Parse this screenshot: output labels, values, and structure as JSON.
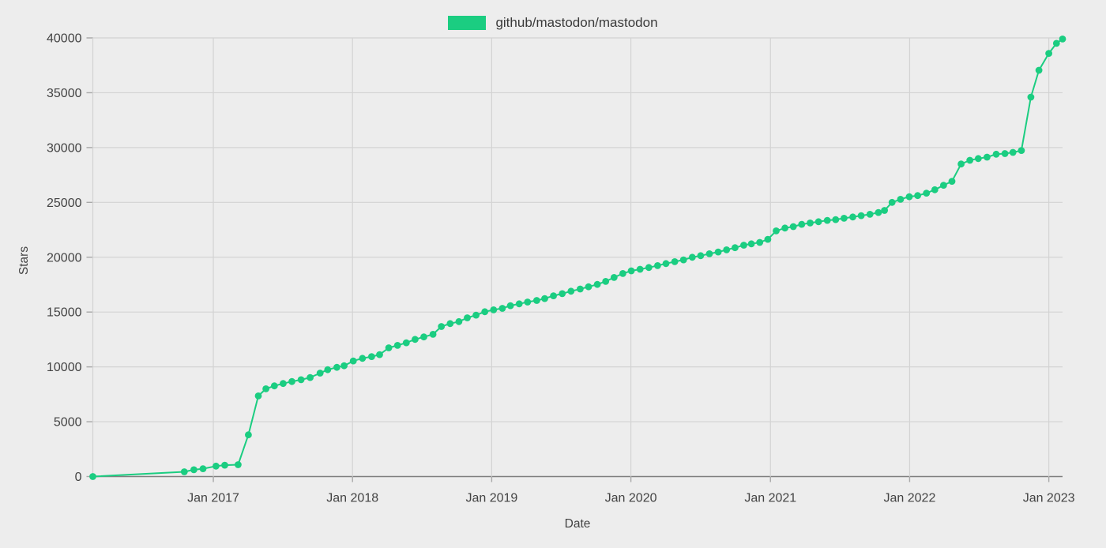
{
  "legend": {
    "label": "github/mastodon/mastodon",
    "swatch_color": "#1BCD81"
  },
  "colors": {
    "background": "#EDEDED",
    "grid": "#D3D3D3",
    "axis_line": "#7F7F7F",
    "tick": "#A8A8A8",
    "text": "#434343",
    "series_green": "#1BCD81"
  },
  "chart_data": {
    "type": "line",
    "title": "",
    "xlabel": "Date",
    "ylabel": "Stars",
    "grid": true,
    "legend_position": "top-center",
    "ylim": [
      0,
      40000
    ],
    "y_ticks": [
      0,
      5000,
      10000,
      15000,
      20000,
      25000,
      30000,
      35000,
      40000
    ],
    "x_domain": [
      "2016-02-20",
      "2023-02-06"
    ],
    "x_ticks": [
      {
        "label": "Jan 2017",
        "date": "2017-01-01"
      },
      {
        "label": "Jan 2018",
        "date": "2018-01-01"
      },
      {
        "label": "Jan 2019",
        "date": "2019-01-01"
      },
      {
        "label": "Jan 2020",
        "date": "2020-01-01"
      },
      {
        "label": "Jan 2021",
        "date": "2021-01-01"
      },
      {
        "label": "Jan 2022",
        "date": "2022-01-01"
      },
      {
        "label": "Jan 2023",
        "date": "2023-01-01"
      }
    ],
    "series": [
      {
        "name": "github/mastodon/mastodon",
        "color": "#1BCD81",
        "points": [
          [
            "2016-02-20",
            0
          ],
          [
            "2016-10-17",
            430
          ],
          [
            "2016-11-11",
            620
          ],
          [
            "2016-12-05",
            715
          ],
          [
            "2017-01-08",
            950
          ],
          [
            "2017-01-31",
            1040
          ],
          [
            "2017-03-07",
            1080
          ],
          [
            "2017-04-03",
            3800
          ],
          [
            "2017-04-29",
            7350
          ],
          [
            "2017-05-19",
            8000
          ],
          [
            "2017-06-10",
            8270
          ],
          [
            "2017-07-03",
            8480
          ],
          [
            "2017-07-26",
            8665
          ],
          [
            "2017-08-19",
            8830
          ],
          [
            "2017-09-12",
            9030
          ],
          [
            "2017-10-08",
            9430
          ],
          [
            "2017-10-28",
            9745
          ],
          [
            "2017-11-21",
            9960
          ],
          [
            "2017-12-10",
            10100
          ],
          [
            "2018-01-03",
            10540
          ],
          [
            "2018-01-27",
            10780
          ],
          [
            "2018-02-20",
            10940
          ],
          [
            "2018-03-13",
            11120
          ],
          [
            "2018-04-06",
            11740
          ],
          [
            "2018-04-29",
            11960
          ],
          [
            "2018-05-22",
            12200
          ],
          [
            "2018-06-14",
            12510
          ],
          [
            "2018-07-07",
            12730
          ],
          [
            "2018-07-31",
            12970
          ],
          [
            "2018-08-22",
            13680
          ],
          [
            "2018-09-14",
            13950
          ],
          [
            "2018-10-07",
            14130
          ],
          [
            "2018-10-29",
            14470
          ],
          [
            "2018-11-21",
            14720
          ],
          [
            "2018-12-14",
            15030
          ],
          [
            "2019-01-06",
            15200
          ],
          [
            "2019-01-29",
            15340
          ],
          [
            "2019-02-19",
            15580
          ],
          [
            "2019-03-14",
            15750
          ],
          [
            "2019-04-05",
            15915
          ],
          [
            "2019-04-29",
            16060
          ],
          [
            "2019-05-20",
            16230
          ],
          [
            "2019-06-12",
            16480
          ],
          [
            "2019-07-05",
            16680
          ],
          [
            "2019-07-28",
            16900
          ],
          [
            "2019-08-21",
            17100
          ],
          [
            "2019-09-12",
            17300
          ],
          [
            "2019-10-05",
            17520
          ],
          [
            "2019-10-27",
            17790
          ],
          [
            "2019-11-18",
            18150
          ],
          [
            "2019-12-11",
            18510
          ],
          [
            "2020-01-02",
            18760
          ],
          [
            "2020-01-25",
            18900
          ],
          [
            "2020-02-17",
            19060
          ],
          [
            "2020-03-11",
            19230
          ],
          [
            "2020-04-02",
            19420
          ],
          [
            "2020-04-25",
            19590
          ],
          [
            "2020-05-18",
            19760
          ],
          [
            "2020-06-10",
            20000
          ],
          [
            "2020-07-02",
            20140
          ],
          [
            "2020-07-25",
            20310
          ],
          [
            "2020-08-17",
            20480
          ],
          [
            "2020-09-08",
            20670
          ],
          [
            "2020-09-30",
            20870
          ],
          [
            "2020-10-23",
            21100
          ],
          [
            "2020-11-12",
            21220
          ],
          [
            "2020-12-04",
            21350
          ],
          [
            "2020-12-25",
            21630
          ],
          [
            "2021-01-16",
            22400
          ],
          [
            "2021-02-08",
            22660
          ],
          [
            "2021-03-02",
            22790
          ],
          [
            "2021-03-24",
            23000
          ],
          [
            "2021-04-15",
            23120
          ],
          [
            "2021-05-07",
            23240
          ],
          [
            "2021-05-30",
            23360
          ],
          [
            "2021-06-21",
            23430
          ],
          [
            "2021-07-13",
            23550
          ],
          [
            "2021-08-05",
            23670
          ],
          [
            "2021-08-27",
            23790
          ],
          [
            "2021-09-19",
            23910
          ],
          [
            "2021-10-11",
            24080
          ],
          [
            "2021-10-27",
            24270
          ],
          [
            "2021-11-16",
            25000
          ],
          [
            "2021-12-08",
            25280
          ],
          [
            "2021-12-31",
            25520
          ],
          [
            "2022-01-22",
            25620
          ],
          [
            "2022-02-14",
            25840
          ],
          [
            "2022-03-08",
            26150
          ],
          [
            "2022-03-31",
            26560
          ],
          [
            "2022-04-22",
            26920
          ],
          [
            "2022-05-16",
            28500
          ],
          [
            "2022-06-08",
            28840
          ],
          [
            "2022-06-30",
            29000
          ],
          [
            "2022-07-23",
            29130
          ],
          [
            "2022-08-16",
            29390
          ],
          [
            "2022-09-08",
            29450
          ],
          [
            "2022-09-29",
            29560
          ],
          [
            "2022-10-21",
            29730
          ],
          [
            "2022-11-15",
            34600
          ],
          [
            "2022-12-06",
            37050
          ],
          [
            "2023-01-01",
            38590
          ],
          [
            "2023-01-21",
            39500
          ],
          [
            "2023-02-06",
            39900
          ]
        ]
      }
    ]
  }
}
